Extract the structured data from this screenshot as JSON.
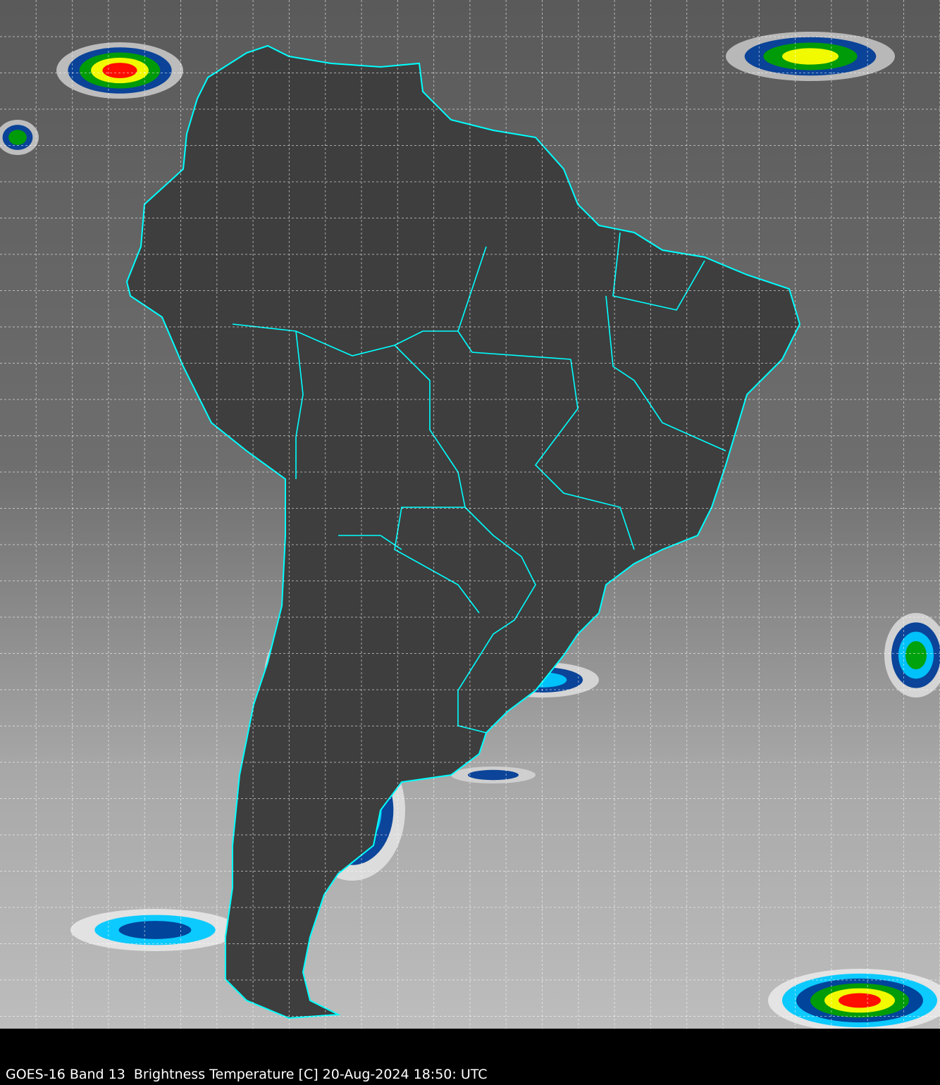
{
  "caption": {
    "satellite": "GOES-16",
    "band": "Band 13",
    "product": "Brightness Temperature [C]",
    "datetime": "20-Aug-2024 18:50: UTC",
    "full_text": "GOES-16 Band 13  Brightness Temperature [C] 20-Aug-2024 18:50: UTC"
  },
  "colors": {
    "border_lines": "#00ffff",
    "grid_lines": "#ffffff",
    "background": "#000000",
    "cold_cloud_scale": [
      "#00c8ff",
      "#003c96",
      "#00a000",
      "#ffff00",
      "#ff0000"
    ]
  },
  "map": {
    "region": "South America",
    "grid": true,
    "grid_style": "dashed"
  }
}
